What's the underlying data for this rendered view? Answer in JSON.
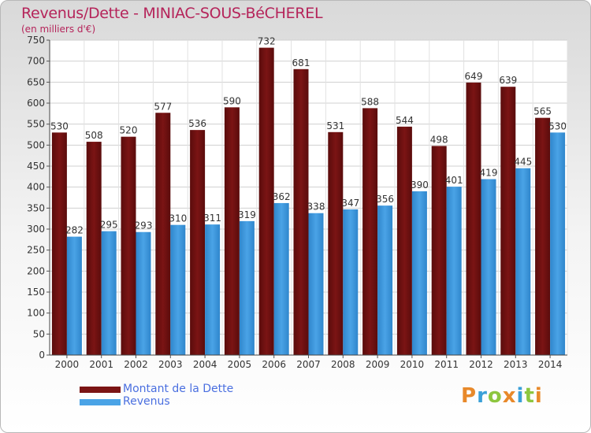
{
  "header": {
    "title": "Revenus/Dette - MINIAC-SOUS-BéCHEREL",
    "subtitle": "(en milliers d'€)"
  },
  "chart_data": {
    "type": "bar",
    "categories": [
      "2000",
      "2001",
      "2002",
      "2003",
      "2004",
      "2005",
      "2006",
      "2007",
      "2008",
      "2009",
      "2010",
      "2011",
      "2012",
      "2013",
      "2014"
    ],
    "series": [
      {
        "name": "Montant de la Dette",
        "color": "#7b1414",
        "values": [
          530,
          508,
          520,
          577,
          536,
          590,
          732,
          681,
          531,
          588,
          544,
          498,
          649,
          639,
          565
        ]
      },
      {
        "name": "Revenus",
        "color": "#4aa3e6",
        "values": [
          282,
          295,
          293,
          310,
          311,
          319,
          362,
          338,
          347,
          356,
          390,
          401,
          419,
          445,
          530
        ]
      }
    ],
    "ylim": [
      0,
      750
    ],
    "yticks": [
      0,
      50,
      100,
      150,
      200,
      250,
      300,
      350,
      400,
      450,
      500,
      550,
      600,
      650,
      700,
      750
    ],
    "grid": true,
    "legend_position": "bottom-left"
  },
  "legend": {
    "items": [
      {
        "label": "Montant de la Dette",
        "color": "#7b1414"
      },
      {
        "label": "Revenus",
        "color": "#4aa3e6"
      }
    ]
  },
  "logo": {
    "text": "Proxiti",
    "letters": [
      "P",
      "r",
      "o",
      "x",
      "i",
      "t",
      "i"
    ],
    "colors": [
      "#e8892a",
      "#3aa0d8",
      "#8dc63f",
      "#e8892a",
      "#3aa0d8",
      "#8dc63f",
      "#e8892a"
    ]
  }
}
